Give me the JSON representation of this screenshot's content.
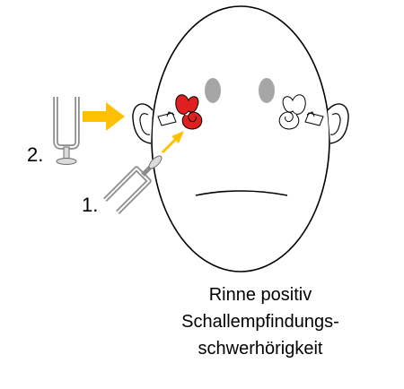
{
  "labels": {
    "step1": "1.",
    "step2": "2."
  },
  "caption": {
    "line1": "Rinne positiv",
    "line2": "Schallempfindungs-",
    "line3": "schwerhörigkeit"
  },
  "colors": {
    "outline": "#000000",
    "arrow": "#ffc000",
    "affected_ear": "#e02020",
    "fork": "#8c8c8c",
    "eyes": "#a6a6a6"
  }
}
